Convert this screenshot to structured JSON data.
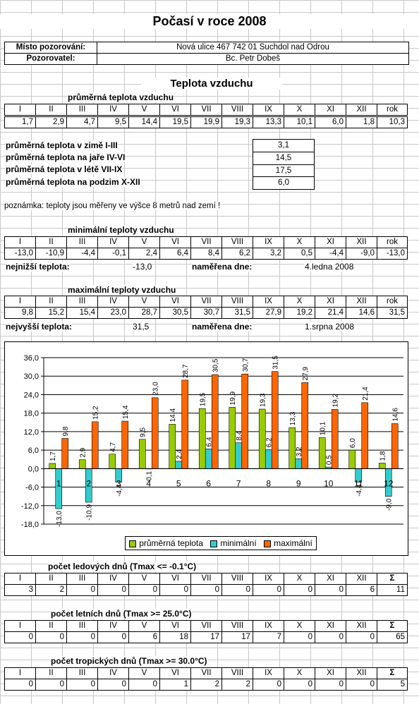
{
  "title": "Počasí v roce 2008",
  "location": {
    "label": "Místo pozorování:",
    "value": "Nová ulice 467  742 01 Suchdol nad Odrou"
  },
  "observer": {
    "label": "Pozorovatel:",
    "value": "Bc. Petr Dobeš"
  },
  "section_title": "Teplota vzduchu",
  "months": [
    "I",
    "II",
    "III",
    "IV",
    "V",
    "VI",
    "VII",
    "VIII",
    "IX",
    "X",
    "XI",
    "XII"
  ],
  "avg": {
    "heading": "průměrná teplota vzduchu",
    "year_label": "rok",
    "values": [
      "1,7",
      "2,9",
      "4,7",
      "9,5",
      "14,4",
      "19,5",
      "19,9",
      "19,3",
      "13,3",
      "10,1",
      "6,0",
      "1,8"
    ],
    "year": "10,3"
  },
  "seasons": [
    {
      "label": "průměrná teplota v zimě I-III",
      "value": "3,1"
    },
    {
      "label": "průměrná teplota na jaře IV-VI",
      "value": "14,5"
    },
    {
      "label": "průměrná teplota v létě VII-IX",
      "value": "17,5"
    },
    {
      "label": "průměrná teplota na podzim X-XII",
      "value": "6,0"
    }
  ],
  "note": "poznámka: teploty jsou měřeny ve výšce 8 metrů nad zemí !",
  "min": {
    "heading": "minimální teploty vzduchu",
    "year_label": "rok",
    "values": [
      "-13,0",
      "-10,9",
      "-4,4",
      "-0,1",
      "2,4",
      "6,4",
      "8,4",
      "6,2",
      "3,2",
      "0,5",
      "-4,4",
      "-9,0"
    ],
    "year": "-13,0",
    "extreme_label": "nejnižší teplota:",
    "extreme_value": "-13,0",
    "date_label": "naměřena dne:",
    "date_value": "4.ledna 2008"
  },
  "max": {
    "heading": "maximální teploty vzduchu",
    "year_label": "rok",
    "values": [
      "9,8",
      "15,2",
      "15,4",
      "23,0",
      "28,7",
      "30,5",
      "30,7",
      "31,5",
      "27,9",
      "19,2",
      "21,4",
      "14,6"
    ],
    "year": "31,5",
    "extreme_label": "nejvyšší teplota:",
    "extreme_value": "31,5",
    "date_label": "naměřena dne:",
    "date_value": "1.srpna 2008"
  },
  "chart_data": {
    "type": "bar",
    "categories": [
      "1",
      "2",
      "3",
      "4",
      "5",
      "6",
      "7",
      "8",
      "9",
      "10",
      "11",
      "12"
    ],
    "series": [
      {
        "name": "průměrná teplota",
        "color": "#99cc00",
        "values": [
          1.7,
          2.9,
          4.7,
          9.5,
          14.4,
          19.5,
          19.9,
          19.3,
          13.3,
          10.1,
          6.0,
          1.8
        ]
      },
      {
        "name": "minimální",
        "color": "#33cccc",
        "values": [
          -13.0,
          -10.9,
          -4.4,
          -0.1,
          2.4,
          6.4,
          8.4,
          6.2,
          3.2,
          0.5,
          -4.4,
          -9.0
        ]
      },
      {
        "name": "maximální",
        "color": "#ff6600",
        "values": [
          9.8,
          15.2,
          15.4,
          23.0,
          28.7,
          30.5,
          30.7,
          31.5,
          27.9,
          19.2,
          21.4,
          14.6
        ]
      }
    ],
    "ylim": [
      -18,
      36
    ],
    "yticks": [
      "-18,0",
      "-12,0",
      "-6,0",
      "0,0",
      "6,0",
      "12,0",
      "18,0",
      "24,0",
      "30,0",
      "36,0"
    ],
    "grid": true,
    "legend_position": "bottom"
  },
  "ice_days": {
    "heading": "počet ledových dnů (Tmax <= -0.1°C)",
    "sum_label": "Σ",
    "values": [
      "3",
      "2",
      "0",
      "0",
      "0",
      "0",
      "0",
      "0",
      "0",
      "0",
      "0",
      "6"
    ],
    "sum": "11"
  },
  "summer_days": {
    "heading": "počet letních dnů (Tmax >= 25.0°C)",
    "sum_label": "Σ",
    "values": [
      "0",
      "0",
      "0",
      "0",
      "6",
      "18",
      "17",
      "17",
      "7",
      "0",
      "0",
      "0"
    ],
    "sum": "65"
  },
  "tropical_days": {
    "heading": "počet tropických dnů (Tmax >= 30.0°C)",
    "sum_label": "Σ",
    "values": [
      "0",
      "0",
      "0",
      "0",
      "0",
      "1",
      "2",
      "2",
      "0",
      "0",
      "0",
      "0"
    ],
    "sum": "5"
  }
}
